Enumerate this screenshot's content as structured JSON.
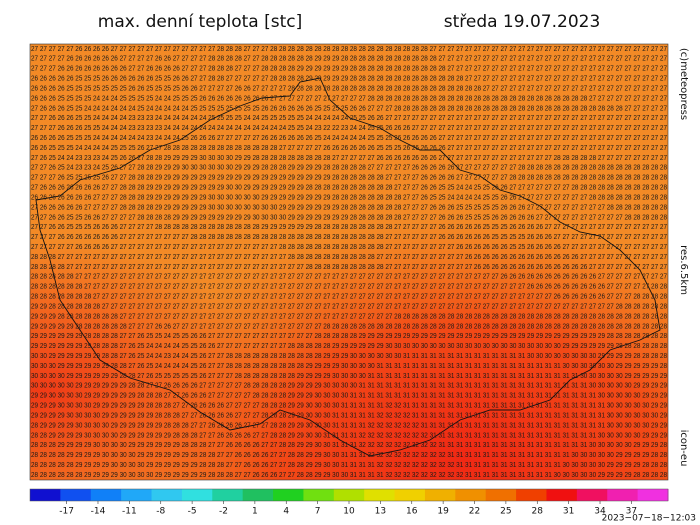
{
  "header": {
    "title": "max. denní teplota [stc]",
    "date": "středa 19.07.2023"
  },
  "side_labels": {
    "copyright": "(c)meteopress",
    "resolution": "res.6.5km",
    "model": "icon-eu"
  },
  "timestamp": "2023−07−18−12:03",
  "colorbar": {
    "lim": [
      -20.5,
      40.5
    ],
    "ticks": [
      -17,
      -14,
      -11,
      -8,
      -5,
      -2,
      1,
      4,
      7,
      10,
      13,
      16,
      19,
      22,
      25,
      28,
      31,
      34,
      37
    ],
    "colors": [
      "#1010d0",
      "#1050f0",
      "#1080f8",
      "#20a8f8",
      "#30c8f0",
      "#30e0e0",
      "#20d0a0",
      "#20c060",
      "#20d020",
      "#70e010",
      "#b0e000",
      "#e0e000",
      "#f0d000",
      "#f0b000",
      "#f09000",
      "#f07000",
      "#f04000",
      "#f01010",
      "#f01060",
      "#f020b0",
      "#f030e0"
    ]
  },
  "map": {
    "rows": [
      "27 27 27 27 27 26 26 26 26 27 27 27 27 27 27 27 27 27 27 27 27 28 28 28 27 27 27 28 28 28 28 28 28 28 28 28 28 28 28 28 28 28 28 28 28 27 27 27 27 27 27 27 27 27 27 27 27 27 27 27 27 27 27 27 27 27 27 27 27 27 27 27",
      "27 27 27 27 26 26 26 26 26 26 27 27 27 27 26 26 27 27 27 27 28 28 28 28 27 27 28 28 28 28 28 28 29 29 29 28 28 28 28 28 28 28 28 28 28 28 27 27 27 27 27 27 27 27 27 27 27 27 27 27 27 27 27 27 27 27 27 27 27 27 27 27",
      "27 27 27 26 26 26 26 26 26 26 26 27 27 26 26 26 26 27 27 27 28 28 28 27 27 27 28 28 28 28 29 29 29 29 29 29 28 28 28 28 28 28 28 28 28 28 28 27 27 27 27 27 27 27 27 27 27 27 27 27 27 27 27 27 27 27 27 27 27 27 27 27",
      "26 26 26 26 26 25 25 25 26 26 26 26 26 26 25 25 26 26 27 27 28 28 27 27 27 27 27 28 28 28 28 29 29 29 29 29 28 28 28 28 28 28 28 28 28 28 28 28 28 27 27 27 27 27 27 27 27 27 27 27 27 27 27 27 27 27 27 27 27 27 27 27",
      "26 26 26 26 25 25 25 25 25 25 25 26 26 25 25 25 25 26 26 27 27 27 27 26 26 27 27 27 27 28 28 28 28 28 28 28 28 28 28 28 28 28 28 28 28 28 28 28 28 28 28 27 27 27 27 27 27 27 27 27 27 27 27 27 27 27 27 27 27 27 27 27",
      "26 26 26 25 25 25 25 24 24 24 25 25 25 25 24 24 25 25 25 26 26 26 26 26 26 26 26 27 27 27 27 27 27 27 27 27 27 27 28 28 28 28 28 28 28 28 28 28 28 28 28 28 28 28 28 28 28 28 28 28 28 28 28 27 27 27 27 27 27 27 27 27",
      "27 26 26 26 25 25 24 24 24 24 24 24 25 24 24 24 24 24 25 25 25 25 25 25 25 25 26 26 26 26 26 26 25 25 25 25 26 26 27 27 27 28 28 28 28 28 28 28 28 28 28 28 28 28 28 28 28 28 28 28 28 28 28 28 28 28 28 27 27 27 27 27",
      "27 27 26 26 26 25 25 24 24 24 24 23 23 23 24 24 24 24 24 24 25 25 25 25 24 24 25 25 25 25 25 24 24 24 24 24 25 25 26 26 27 27 27 27 27 27 27 27 27 27 27 27 27 27 27 27 27 27 27 27 27 27 27 27 27 27 27 27 27 27 27 27",
      "27 27 27 26 26 26 25 25 24 24 24 23 23 23 23 24 24 24 24 24 24 24 24 24 24 24 24 24 24 25 25 24 23 22 22 23 24 24 25 25 26 26 26 27 27 27 27 27 27 27 27 27 27 27 27 27 27 27 27 27 27 27 27 27 27 27 27 27 27 27 27 27",
      "26 26 26 26 25 25 25 24 24 24 24 24 24 23 24 24 24 25 26 26 26 27 27 27 27 27 26 26 26 26 26 26 25 24 24 24 24 24 25 25 25 26 26 26 26 26 27 27 27 27 27 27 27 27 27 27 27 27 27 27 27 27 27 27 27 27 27 27 27 27 27 27",
      "26 26 25 25 25 24 24 24 24 25 25 25 26 27 27 28 28 28 28 28 28 28 28 28 28 28 28 28 27 27 27 27 27 26 26 26 26 26 26 25 25 25 26 26 26 26 26 27 27 27 27 27 27 27 27 27 27 27 27 27 27 27 27 27 27 27 27 27 27 27 27 27",
      "27 26 25 24 24 23 23 23 24 25 26 26 27 28 28 29 29 29 29 30 30 30 30 29 29 28 28 28 28 28 28 28 28 28 27 27 27 27 27 26 26 26 26 26 26 26 27 27 27 27 27 27 27 27 27 27 27 27 27 28 28 28 28 28 27 27 27 27 27 27 27 27",
      "27 27 26 25 24 23 23 24 25 26 27 27 28 28 29 29 29 30 30 30 30 30 30 29 29 29 28 28 28 29 29 29 29 28 28 28 28 28 27 27 27 27 27 26 26 26 26 26 27 27 27 27 27 27 27 28 28 28 28 28 28 28 28 28 28 28 28 28 28 28 28 28",
      "27 27 27 26 25 25 25 25 26 27 27 28 28 28 29 29 29 29 29 29 29 29 29 29 29 29 29 29 29 29 29 29 29 29 28 28 28 28 28 28 27 27 27 27 26 26 26 26 27 27 27 27 27 27 28 28 28 28 28 28 28 28 28 28 28 28 28 28 28 28 28 28",
      "27 26 26 26 26 26 26 26 27 27 28 28 28 29 29 29 29 29 29 29 29 29 30 30 29 29 29 29 29 29 29 28 28 28 28 28 28 28 28 28 28 27 27 27 26 26 25 25 24 24 25 25 26 26 27 27 27 27 27 27 27 28 28 28 28 28 28 28 28 28 28 28",
      "26 26 26 26 26 26 26 27 27 27 28 28 28 29 29 29 29 29 29 29 30 30 30 30 30 30 29 29 29 29 29 29 29 29 28 28 28 28 28 28 28 28 27 27 26 25 25 24 24 24 24 25 25 26 26 27 27 27 27 27 27 27 27 28 28 28 28 28 28 28 28 28",
      "27 26 26 26 26 26 27 27 27 27 28 28 28 28 29 29 29 29 29 29 30 30 30 30 30 30 30 30 29 29 29 29 29 29 29 28 28 28 28 28 28 28 27 27 27 26 26 26 25 25 25 25 25 26 26 26 27 27 27 27 27 27 27 27 27 28 28 28 28 28 28 28",
      "27 27 26 26 25 25 26 26 27 27 27 27 28 28 28 28 29 29 29 29 29 29 29 29 29 30 30 30 30 29 29 29 29 29 29 29 28 28 28 28 28 28 27 27 27 27 26 26 26 25 25 25 26 26 26 26 26 27 27 27 27 27 27 27 27 27 27 28 28 28 28 28",
      "27 27 26 26 25 25 25 26 26 26 27 27 27 27 28 28 28 28 28 28 28 28 28 28 28 28 29 29 29 29 29 29 28 28 28 28 28 28 28 28 28 27 27 27 27 27 26 26 26 26 26 25 25 25 26 26 26 26 27 27 27 27 27 27 27 27 27 27 27 27 27 27",
      "27 27 27 26 26 26 26 26 26 26 27 27 27 27 27 27 27 27 28 28 28 28 28 28 28 28 28 28 28 28 28 28 28 28 28 28 28 28 28 28 27 27 27 27 27 27 26 26 26 26 26 26 25 25 25 25 26 26 26 27 27 27 27 27 27 27 27 27 27 27 27 27",
      "27 27 27 27 27 26 26 26 26 27 27 27 27 27 27 27 27 27 27 27 27 27 27 27 27 27 27 27 28 28 28 28 28 28 28 28 28 28 28 28 27 27 27 27 27 27 27 27 26 26 26 26 26 26 25 25 26 26 26 26 27 27 27 27 27 27 27 27 27 27 27 27",
      "28 28 28 27 27 27 27 27 27 27 27 27 27 27 27 27 27 27 27 27 27 27 27 27 27 27 27 27 27 28 28 28 28 28 28 28 28 28 28 27 27 27 27 27 27 27 27 27 27 26 26 26 26 26 26 26 26 26 26 26 26 26 27 27 27 27 27 27 27 27 27 27",
      "28 28 28 28 27 27 27 27 27 27 27 27 27 27 27 27 27 27 27 27 27 27 27 27 27 27 27 27 27 27 27 28 28 28 28 28 28 28 28 28 27 27 27 27 27 27 27 27 27 27 26 26 26 26 26 26 26 26 26 26 26 26 26 27 27 27 27 27 27 27 27 27",
      "28 28 28 28 28 27 27 27 27 27 27 27 27 27 27 27 27 27 27 27 27 27 27 27 27 27 27 27 27 27 27 27 27 27 27 27 27 27 27 27 27 27 27 27 27 27 27 27 27 27 27 27 27 26 26 26 26 26 26 26 26 26 26 26 27 27 27 27 27 27 27 27",
      "28 28 28 28 28 28 27 27 27 27 27 27 27 27 27 27 27 27 27 27 27 27 27 27 27 27 27 27 27 27 27 27 27 27 27 27 27 27 27 27 27 27 27 27 27 27 27 27 27 27 27 27 27 27 27 27 26 26 26 26 26 26 26 26 26 27 27 27 27 27 28 28",
      "28 28 28 28 28 28 28 27 27 27 27 27 27 27 27 27 27 27 27 27 27 27 27 27 27 27 27 27 27 27 27 27 27 27 27 27 27 27 27 27 27 27 27 27 27 27 27 27 27 27 27 27 27 27 27 27 27 27 27 26 26 26 26 26 26 27 27 27 28 28 28 28",
      "29 29 28 28 28 28 28 28 27 27 27 27 27 27 27 27 27 27 27 27 27 27 27 27 27 27 27 27 27 27 27 27 27 27 27 27 27 27 27 27 27 27 27 27 27 27 27 27 27 27 27 27 27 27 27 27 27 27 27 27 27 27 27 27 27 27 28 28 28 28 28 28",
      "29 29 29 28 28 28 28 28 28 28 27 27 27 27 27 27 27 27 27 27 27 27 27 27 27 27 27 27 27 27 27 27 27 27 27 27 27 27 27 27 27 28 28 28 28 28 28 28 28 28 28 28 28 28 28 28 28 28 28 28 28 28 28 28 28 28 28 28 28 28 28 28",
      "29 29 29 29 29 28 28 28 28 28 28 27 27 27 26 26 27 27 27 27 27 27 27 27 27 27 27 27 27 27 27 27 27 28 28 28 28 28 28 28 28 28 28 28 28 28 28 28 28 28 28 28 28 28 28 28 28 28 28 28 28 28 28 28 28 28 28 28 28 28 28 28",
      "29 29 29 29 29 29 28 28 28 28 27 27 26 25 25 24 25 25 26 26 27 27 27 27 27 27 27 27 27 27 27 27 28 28 28 28 28 29 29 29 29 29 29 29 29 29 29 29 29 29 29 29 29 29 29 29 29 29 29 29 29 29 29 29 29 28 28 28 28 28 28 28",
      "29 29 29 29 29 29 29 28 28 28 27 26 25 24 24 24 24 25 25 26 26 27 27 27 27 27 27 27 27 28 28 28 28 28 29 29 29 29 29 29 30 30 30 30 30 30 30 30 30 30 30 30 30 30 30 30 30 30 30 30 29 29 29 29 29 29 28 28 28 28 28 28",
      "30 30 29 29 29 29 29 29 28 28 27 26 25 24 24 23 24 24 25 26 27 27 28 28 28 28 28 28 28 28 28 28 28 29 29 29 30 30 30 30 30 30 31 31 31 31 31 31 31 31 31 31 31 31 31 31 30 30 30 30 30 30 30 30 29 29 29 29 28 28 28 28",
      "30 30 30 29 29 29 29 29 29 28 28 27 26 25 24 24 24 24 25 26 27 27 28 28 28 28 28 28 28 28 28 29 29 29 29 30 30 30 30 31 31 31 31 31 31 31 31 31 31 31 31 31 31 31 31 31 31 31 31 31 30 30 30 30 30 30 29 29 29 29 29 28",
      "30 30 30 30 29 29 29 29 29 29 28 28 27 26 25 25 25 25 25 26 27 27 27 28 28 28 28 28 28 28 29 29 29 29 30 30 30 30 31 31 31 31 31 31 31 31 31 31 31 31 31 31 31 31 31 31 31 31 31 31 31 31 30 30 30 30 30 29 29 29 29 29",
      "30 30 30 30 30 29 29 29 29 29 29 28 28 27 27 26 26 26 26 27 27 27 27 27 28 28 28 28 28 29 29 29 29 30 30 30 30 31 31 31 31 31 31 31 31 31 31 31 31 31 31 31 31 31 31 31 31 31 31 31 31 31 31 30 30 30 30 30 29 29 29 29",
      "29 29 30 30 30 30 29 29 29 29 29 29 28 28 28 27 27 26 26 26 27 27 27 27 27 28 28 28 28 29 29 29 30 30 30 30 31 31 31 31 31 31 31 31 31 31 31 31 31 31 31 31 31 31 31 31 31 31 31 31 31 31 31 31 30 30 30 30 30 29 29 29",
      "29 29 29 30 30 30 30 29 29 29 29 29 29 28 28 28 27 27 26 26 26 26 27 27 27 27 28 28 28 29 29 30 30 30 30 31 31 31 31 31 32 32 31 31 31 31 31 31 31 31 31 31 31 31 31 31 31 31 31 31 31 31 31 31 31 30 30 30 30 30 29 29",
      "29 29 29 29 30 30 30 30 29 29 29 29 29 29 28 28 28 27 27 26 26 26 26 27 27 27 28 28 28 29 29 30 30 30 31 31 31 31 31 32 32 32 32 31 31 31 31 31 31 31 31 31 31 31 31 31 31 31 31 31 31 31 31 31 31 30 30 30 30 30 30 29",
      "28 29 29 29 29 30 30 30 30 29 29 29 29 29 29 28 28 28 27 27 26 26 26 26 27 27 27 28 28 29 29 30 30 30 31 31 31 31 32 32 32 32 32 32 31 31 31 31 31 31 31 31 31 31 31 31 31 31 31 31 31 31 31 31 31 30 30 30 30 30 29 29",
      "28 28 29 29 29 29 30 30 30 30 29 29 29 29 29 29 28 28 28 27 27 26 26 26 26 27 27 28 28 29 29 30 30 31 31 31 31 32 32 32 32 32 32 32 32 31 31 31 31 31 31 31 31 31 31 31 31 31 31 31 31 31 31 31 30 30 30 30 30 29 29 29",
      "28 28 28 29 29 29 29 30 30 30 30 29 29 29 29 29 29 28 28 28 27 27 26 26 26 26 27 27 28 28 29 29 30 30 31 31 31 32 32 32 32 32 32 32 32 32 31 31 31 31 31 31 31 31 31 31 31 31 31 31 31 31 31 30 30 30 30 30 29 29 29 28",
      "28 28 28 28 29 29 29 29 30 30 30 30 29 29 29 29 29 29 28 28 28 27 27 26 26 26 26 27 27 28 28 29 29 30 30 31 31 31 32 32 32 32 32 32 32 32 32 31 31 31 31 31 31 31 31 31 31 31 31 31 31 30 30 30 30 30 29 29 29 29 28 28",
      "28 28 28 28 28 29 29 29 29 30 30 30 30 29 29 29 29 29 29 28 28 28 27 27 26 26 26 27 27 28 28 29 29 30 30 31 31 31 31 32 32 32 32 32 32 32 32 32 31 31 31 31 31 31 31 31 31 31 31 31 30 30 30 30 30 29 29 29 29 28 28 28",
      "28 28 28 28 28 28 29 29 29 29 30 30 30 30 29 29 29 29 29 29 28 28 28 27 27 26 26 26 27 27 28 28 29 29 30 30 31 31 31 31 32 32 32 32 32 32 32 32 32 31 31 31 31 31 31 31 31 31 31 30 30 30 30 30 29 29 29 29 28 28 28 28"
    ]
  }
}
